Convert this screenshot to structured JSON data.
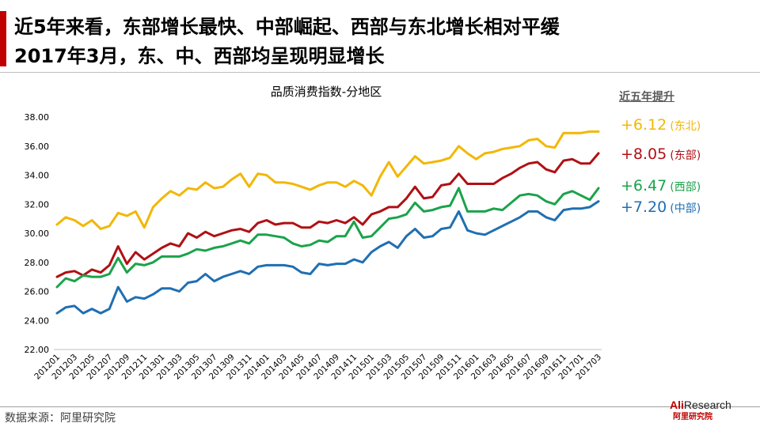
{
  "headline": {
    "line1": "近5年来看，东部增长最快、中部崛起、西部与东北增长相对平缓",
    "line2": "2017年3月，东、中、西部均呈现明显增长"
  },
  "footer": {
    "source": "数据来源：阿里研究院"
  },
  "logo": {
    "brand_prefix": "Ali",
    "brand_suffix": "Research",
    "subtitle": "阿里研究院"
  },
  "legend": {
    "title": "近五年提升",
    "items": [
      {
        "value": "+6.12",
        "name": "(东北)",
        "color": "#f2b705"
      },
      {
        "value": "+8.05",
        "name": "(东部)",
        "color": "#b01014"
      },
      {
        "value": "+6.47",
        "name": "(西部)",
        "color": "#1aa34a"
      },
      {
        "value": "+7.20",
        "name": "(中部)",
        "color": "#1f6fb2"
      }
    ]
  },
  "chart_data": {
    "type": "line",
    "title": "品质消费指数-分地区",
    "xlabel": "",
    "ylabel": "",
    "ylim": [
      22,
      38
    ],
    "yticks": [
      "22.00",
      "24.00",
      "26.00",
      "28.00",
      "30.00",
      "32.00",
      "34.00",
      "36.00",
      "38.00"
    ],
    "grid": false,
    "x": [
      "201201",
      "201202",
      "201203",
      "201204",
      "201205",
      "201206",
      "201207",
      "201208",
      "201209",
      "201210",
      "201211",
      "201212",
      "201301",
      "201302",
      "201303",
      "201304",
      "201305",
      "201306",
      "201307",
      "201308",
      "201309",
      "201310",
      "201311",
      "201312",
      "201401",
      "201402",
      "201403",
      "201404",
      "201405",
      "201406",
      "201407",
      "201408",
      "201409",
      "201410",
      "201411",
      "201412",
      "201501",
      "201502",
      "201503",
      "201504",
      "201505",
      "201506",
      "201507",
      "201508",
      "201509",
      "201510",
      "201511",
      "201512",
      "201601",
      "201602",
      "201603",
      "201604",
      "201605",
      "201606",
      "201607",
      "201608",
      "201609",
      "201610",
      "201611",
      "201612",
      "201701",
      "201702",
      "201703"
    ],
    "xtick_labels": [
      "201201",
      "201203",
      "201205",
      "201207",
      "201209",
      "201211",
      "201301",
      "201303",
      "201305",
      "201307",
      "201309",
      "201311",
      "201401",
      "201403",
      "201405",
      "201407",
      "201409",
      "201411",
      "201501",
      "201503",
      "201505",
      "201507",
      "201509",
      "201511",
      "201601",
      "201603",
      "201605",
      "201607",
      "201609",
      "201611",
      "201701",
      "201703"
    ],
    "series": [
      {
        "key": "northeast",
        "color": "#f2b705",
        "values": [
          30.6,
          31.1,
          30.9,
          30.5,
          30.9,
          30.3,
          30.5,
          31.4,
          31.2,
          31.5,
          30.4,
          31.8,
          32.4,
          32.9,
          32.6,
          33.1,
          33.0,
          33.5,
          33.1,
          33.2,
          33.7,
          34.1,
          33.2,
          34.1,
          34.0,
          33.5,
          33.5,
          33.4,
          33.2,
          33.0,
          33.3,
          33.5,
          33.5,
          33.2,
          33.6,
          33.3,
          32.6,
          33.9,
          34.9,
          33.9,
          34.6,
          35.3,
          34.8,
          34.9,
          35.0,
          35.2,
          36.0,
          35.5,
          35.1,
          35.5,
          35.6,
          35.8,
          35.9,
          36.0,
          36.4,
          36.5,
          36.0,
          35.9,
          36.9,
          36.9,
          36.9,
          37.0,
          37.0
        ]
      },
      {
        "key": "east",
        "color": "#b01014",
        "values": [
          27.0,
          27.3,
          27.4,
          27.1,
          27.5,
          27.3,
          27.8,
          29.1,
          27.9,
          28.7,
          28.2,
          28.6,
          29.0,
          29.3,
          29.1,
          30.0,
          29.7,
          30.1,
          29.8,
          30.0,
          30.2,
          30.3,
          30.1,
          30.7,
          30.9,
          30.6,
          30.7,
          30.7,
          30.4,
          30.4,
          30.8,
          30.7,
          30.9,
          30.7,
          31.1,
          30.6,
          31.3,
          31.5,
          31.8,
          31.8,
          32.4,
          33.2,
          32.4,
          32.5,
          33.3,
          33.4,
          34.1,
          33.4,
          33.4,
          33.4,
          33.4,
          33.8,
          34.1,
          34.5,
          34.8,
          34.9,
          34.4,
          34.2,
          35.0,
          35.1,
          34.8,
          34.8,
          35.5
        ]
      },
      {
        "key": "west",
        "color": "#1aa34a",
        "values": [
          26.3,
          26.9,
          26.7,
          27.1,
          27.0,
          27.0,
          27.2,
          28.3,
          27.3,
          27.9,
          27.8,
          28.0,
          28.4,
          28.4,
          28.4,
          28.6,
          28.9,
          28.8,
          29.0,
          29.1,
          29.3,
          29.5,
          29.3,
          29.9,
          29.9,
          29.8,
          29.7,
          29.3,
          29.1,
          29.2,
          29.5,
          29.4,
          29.8,
          29.8,
          30.8,
          29.7,
          29.8,
          30.4,
          31.0,
          31.1,
          31.3,
          32.1,
          31.5,
          31.6,
          31.8,
          31.9,
          33.1,
          31.5,
          31.5,
          31.5,
          31.7,
          31.6,
          32.1,
          32.6,
          32.7,
          32.6,
          32.2,
          32.0,
          32.7,
          32.9,
          32.6,
          32.3,
          33.1
        ]
      },
      {
        "key": "central",
        "color": "#1f6fb2",
        "values": [
          24.5,
          24.9,
          25.0,
          24.5,
          24.8,
          24.5,
          24.8,
          26.3,
          25.3,
          25.6,
          25.5,
          25.8,
          26.2,
          26.2,
          26.0,
          26.6,
          26.7,
          27.2,
          26.7,
          27.0,
          27.2,
          27.4,
          27.2,
          27.7,
          27.8,
          27.8,
          27.8,
          27.7,
          27.3,
          27.2,
          27.9,
          27.8,
          27.9,
          27.9,
          28.2,
          28.0,
          28.7,
          29.1,
          29.4,
          29.0,
          29.8,
          30.3,
          29.7,
          29.8,
          30.3,
          30.4,
          31.5,
          30.2,
          30.0,
          29.9,
          30.2,
          30.5,
          30.8,
          31.1,
          31.5,
          31.5,
          31.1,
          30.9,
          31.6,
          31.7,
          31.7,
          31.8,
          32.2
        ]
      }
    ]
  }
}
